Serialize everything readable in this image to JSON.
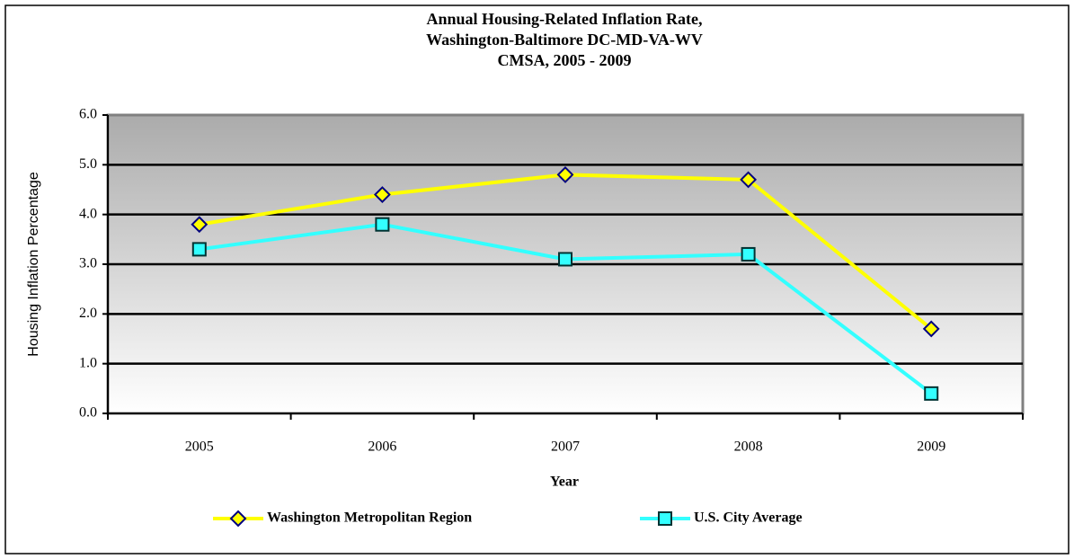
{
  "chart_data": {
    "type": "line",
    "title": [
      "Annual Housing-Related  Inflation Rate,",
      "Washington-Baltimore DC-MD-VA-WV",
      "CMSA, 2005 - 2009"
    ],
    "x_label": "Year",
    "y_label": "Housing Inflation Percentage",
    "categories": [
      "2005",
      "2006",
      "2007",
      "2008",
      "2009"
    ],
    "series": [
      {
        "name": "Washington Metropolitan  Region",
        "color": "#ffff00",
        "marker": "diamond",
        "values": [
          3.8,
          4.4,
          4.8,
          4.7,
          1.7
        ]
      },
      {
        "name": "U.S. City Average",
        "color": "#33ffff",
        "marker": "square",
        "values": [
          3.3,
          3.8,
          3.1,
          3.2,
          0.4
        ]
      }
    ],
    "ylim": [
      0,
      6
    ],
    "yticks": [
      {
        "value": 0,
        "label": "0.0"
      },
      {
        "value": 1,
        "label": "1.0"
      },
      {
        "value": 2,
        "label": "2.0"
      },
      {
        "value": 3,
        "label": "3.0"
      },
      {
        "value": 4,
        "label": "4.0"
      },
      {
        "value": 5,
        "label": "5.0"
      },
      {
        "value": 6,
        "label": "6.0"
      }
    ],
    "grid": true,
    "legend": "bottom"
  }
}
